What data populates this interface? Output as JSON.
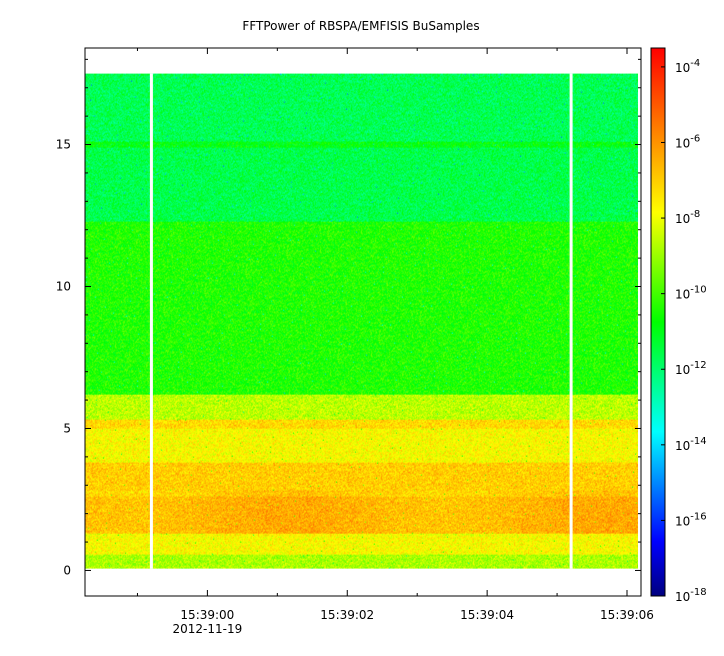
{
  "chart_data": {
    "type": "heatmap",
    "title": "FFTPower of RBSPA/EMFISIS  BuSamples",
    "xlabel": "",
    "ylabel": "",
    "x_axis": {
      "ticks": [
        {
          "value": 0,
          "label": "15:39:00",
          "sublabel": "2012-11-19"
        },
        {
          "value": 2,
          "label": "15:39:02",
          "sublabel": ""
        },
        {
          "value": 4,
          "label": "15:39:04",
          "sublabel": ""
        },
        {
          "value": 6,
          "label": "15:39:06",
          "sublabel": ""
        }
      ],
      "minor_ticks": [
        -1,
        1,
        3,
        5
      ],
      "range": [
        -1.75,
        6.2
      ]
    },
    "y_axis": {
      "ticks": [
        0,
        5,
        10,
        15
      ],
      "labels": [
        "0",
        "5",
        "10",
        "15"
      ],
      "range": [
        -0.9,
        18.4
      ],
      "minor_ticks": [
        1,
        2,
        3,
        4,
        6,
        7,
        8,
        9,
        11,
        12,
        13,
        14,
        16,
        17,
        18
      ]
    },
    "data_extent": {
      "x": [
        -1.75,
        6.15
      ],
      "y": [
        0.05,
        17.5
      ]
    },
    "gaps_x": [
      -0.8,
      5.2
    ],
    "bands": [
      {
        "y": [
          0.05,
          0.55
        ],
        "log_power": -8.8
      },
      {
        "y": [
          0.55,
          1.3
        ],
        "log_power": -7.8
      },
      {
        "y": [
          1.3,
          2.6
        ],
        "log_power": -6.6
      },
      {
        "y": [
          2.6,
          3.8
        ],
        "log_power": -7.0
      },
      {
        "y": [
          3.8,
          5.0
        ],
        "log_power": -7.8
      },
      {
        "y": [
          5.0,
          5.3
        ],
        "log_power": -7.2
      },
      {
        "y": [
          5.3,
          6.2
        ],
        "log_power": -8.6
      },
      {
        "y": [
          6.2,
          12.3
        ],
        "log_power": -10.4
      },
      {
        "y": [
          12.3,
          14.9
        ],
        "log_power": -11.6
      },
      {
        "y": [
          14.9,
          15.1
        ],
        "log_power": -10.9
      },
      {
        "y": [
          15.1,
          17.5
        ],
        "log_power": -11.7
      }
    ],
    "colorbar": {
      "scale": "log",
      "range_exp": [
        -18,
        -3.5
      ],
      "ticks": [
        {
          "exp": -4,
          "base": "10",
          "power": "-4"
        },
        {
          "exp": -6,
          "base": "10",
          "power": "-6"
        },
        {
          "exp": -8,
          "base": "10",
          "power": "-8"
        },
        {
          "exp": -10,
          "base": "10",
          "power": "-10"
        },
        {
          "exp": -12,
          "base": "10",
          "power": "-12"
        },
        {
          "exp": -14,
          "base": "10",
          "power": "-14"
        },
        {
          "exp": -16,
          "base": "10",
          "power": "-16"
        },
        {
          "exp": -18,
          "base": "10",
          "power": "-18"
        }
      ],
      "colormap": [
        "#00007f",
        "#0000ff",
        "#007fff",
        "#00ffff",
        "#00ff7f",
        "#00ff00",
        "#7fff00",
        "#ffff00",
        "#ffaa00",
        "#ff5500",
        "#ff0000"
      ]
    },
    "grid": false,
    "legend": "none"
  }
}
